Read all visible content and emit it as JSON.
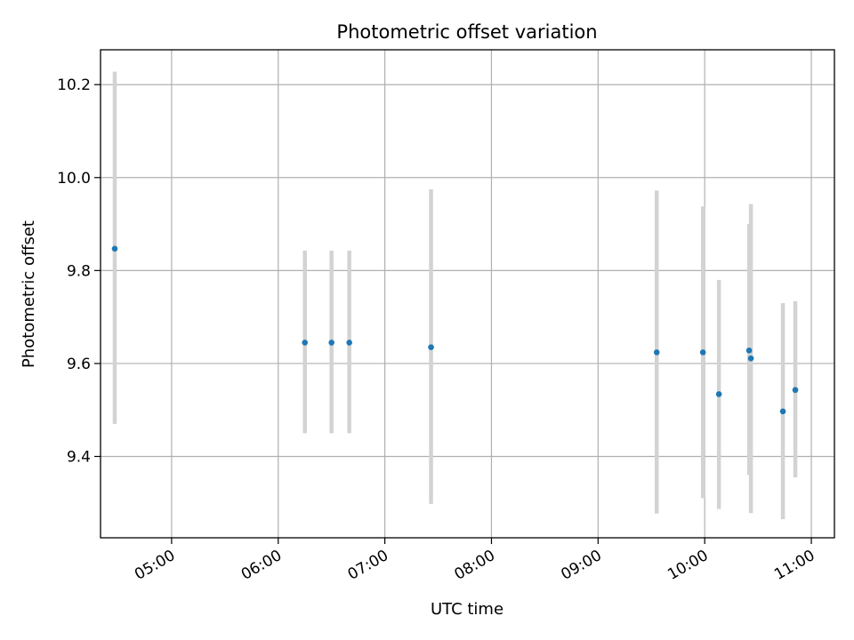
{
  "chart_data": {
    "type": "scatter",
    "title": "Photometric offset variation",
    "xlabel": "UTC time",
    "ylabel": "Photometric offset",
    "xlim": [
      "04:20",
      "11:13"
    ],
    "ylim": [
      9.225,
      10.275
    ],
    "xticks": [
      "05:00",
      "06:00",
      "07:00",
      "08:00",
      "09:00",
      "10:00",
      "11:00"
    ],
    "yticks": [
      9.4,
      9.6,
      9.8,
      10.0,
      10.2
    ],
    "grid": true,
    "colors": {
      "marker": "#1f77b4",
      "errorbar": "#d3d3d3",
      "grid": "#b0b0b0"
    },
    "points": [
      {
        "x": "04:28",
        "y": 9.847,
        "ylow": 9.47,
        "yhigh": 10.228
      },
      {
        "x": "06:15",
        "y": 9.645,
        "ylow": 9.45,
        "yhigh": 9.843
      },
      {
        "x": "06:30",
        "y": 9.645,
        "ylow": 9.45,
        "yhigh": 9.843
      },
      {
        "x": "06:40",
        "y": 9.645,
        "ylow": 9.45,
        "yhigh": 9.843
      },
      {
        "x": "07:26",
        "y": 9.635,
        "ylow": 9.298,
        "yhigh": 9.975
      },
      {
        "x": "09:33",
        "y": 9.624,
        "ylow": 9.277,
        "yhigh": 9.972
      },
      {
        "x": "09:59",
        "y": 9.624,
        "ylow": 9.31,
        "yhigh": 9.938
      },
      {
        "x": "10:08",
        "y": 9.534,
        "ylow": 9.287,
        "yhigh": 9.78
      },
      {
        "x": "10:25",
        "y": 9.628,
        "ylow": 9.36,
        "yhigh": 9.9
      },
      {
        "x": "10:26",
        "y": 9.611,
        "ylow": 9.278,
        "yhigh": 9.943
      },
      {
        "x": "10:44",
        "y": 9.497,
        "ylow": 9.265,
        "yhigh": 9.73
      },
      {
        "x": "10:51",
        "y": 9.543,
        "ylow": 9.355,
        "yhigh": 9.734
      }
    ]
  }
}
